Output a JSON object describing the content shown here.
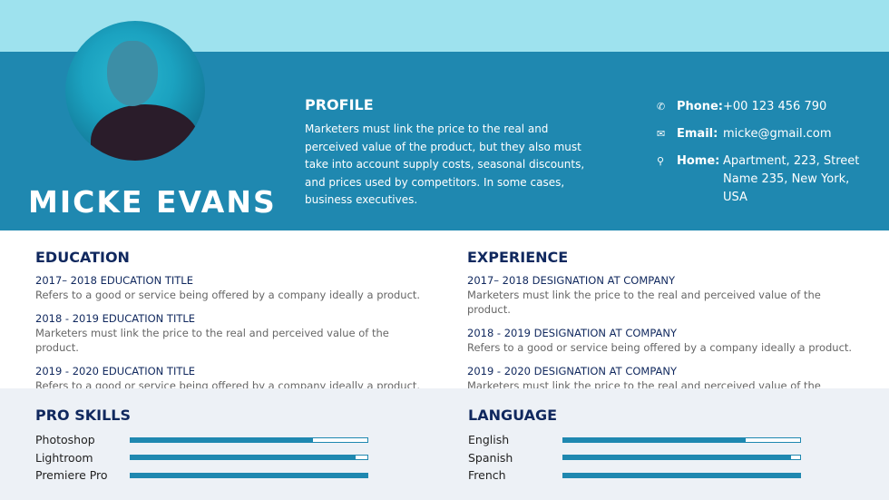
{
  "header": {
    "name": "MICKE EVANS"
  },
  "profile": {
    "title": "PROFILE",
    "text": "Marketers must link the price to the real and perceived value of the product, but they also must take into account supply costs, seasonal discounts, and prices used by competitors. In some cases, business executives."
  },
  "contact": [
    {
      "icon": "phone-icon",
      "glyph": "✆",
      "label": "Phone:",
      "value": "+00 123 456 790"
    },
    {
      "icon": "email-icon",
      "glyph": "✉",
      "label": "Email:",
      "value": "micke@gmail.com"
    },
    {
      "icon": "location-pin-icon",
      "glyph": "⚲",
      "label": "Home:",
      "value": "Apartment, 223, Street Name 235, New York, USA"
    }
  ],
  "education": {
    "title": "EDUCATION",
    "items": [
      {
        "title": "2017– 2018  EDUCATION TITLE",
        "desc": "Refers to a good or service being offered by a company ideally a product."
      },
      {
        "title": "2018 - 2019  EDUCATION TITLE",
        "desc": "Marketers must link the price to the real and perceived value of the product."
      },
      {
        "title": "2019 - 2020  EDUCATION TITLE",
        "desc": "Refers to a good or service being offered by a company ideally a product."
      }
    ]
  },
  "experience": {
    "title": "EXPERIENCE",
    "items": [
      {
        "title": "2017– 2018  DESIGNATION AT COMPANY",
        "desc": "Marketers must link the price to the real and perceived value of the product."
      },
      {
        "title": "2018 - 2019  DESIGNATION AT COMPANY",
        "desc": "Refers to a good or service being offered by a company ideally a product."
      },
      {
        "title": "2019 - 2020  DESIGNATION AT COMPANY",
        "desc": "Marketers must link the price to the real and perceived value of the product."
      }
    ]
  },
  "skills": {
    "title": "PRO SKILLS",
    "items": [
      {
        "name": "Photoshop",
        "level": 77
      },
      {
        "name": "Lightroom",
        "level": 95
      },
      {
        "name": "Premiere Pro",
        "level": 100
      }
    ]
  },
  "language": {
    "title": "LANGUAGE",
    "items": [
      {
        "name": "English",
        "level": 77
      },
      {
        "name": "Spanish",
        "level": 96
      },
      {
        "name": "French",
        "level": 100
      }
    ]
  },
  "colors": {
    "accent": "#1f88b0",
    "top": "#9ee2ee",
    "heading": "#10285e",
    "panel": "#edf1f6"
  }
}
